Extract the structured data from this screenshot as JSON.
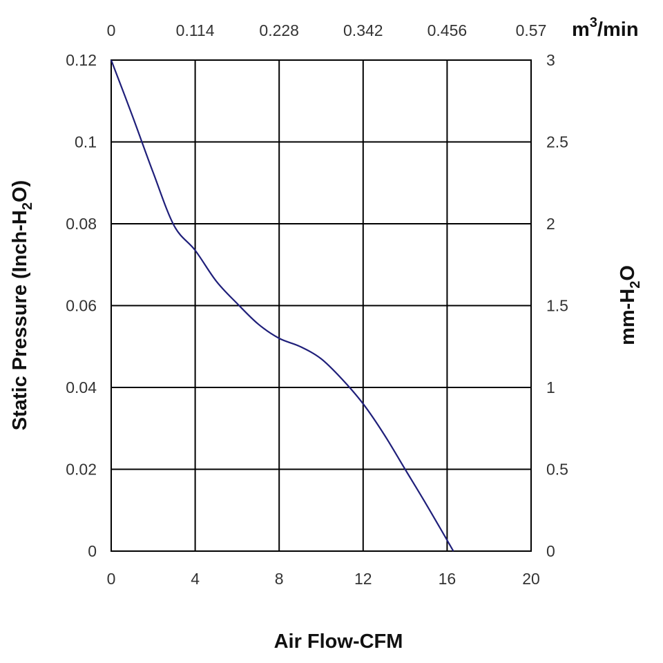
{
  "chart_data": {
    "type": "line",
    "xlabel": "Air Flow-CFM",
    "xlim": [
      0,
      20
    ],
    "x_ticks": [
      "0",
      "4",
      "8",
      "12",
      "16",
      "20"
    ],
    "ylabel": {
      "pre": "Static Pressure (Inch-H",
      "sub": "2",
      "post": "O)"
    },
    "ylim": [
      0,
      0.12
    ],
    "y_ticks": [
      "0",
      "0.02",
      "0.04",
      "0.06",
      "0.08",
      "0.1",
      "0.12"
    ],
    "x2_label": {
      "pre": "m",
      "sup": "3",
      "post": "/min"
    },
    "x2_ticks": [
      "0",
      "0.114",
      "0.228",
      "0.342",
      "0.456",
      "0.57"
    ],
    "y2_label": {
      "pre": "mm-H",
      "sub": "2",
      "post": "O"
    },
    "y2_ticks": [
      "0",
      "0.5",
      "1",
      "1.5",
      "2",
      "2.5",
      "3"
    ],
    "grid": true,
    "series": [
      {
        "name": "Static Pressure",
        "color": "#1f1f7a",
        "x": [
          0,
          1,
          2,
          3,
          4,
          5,
          6,
          7,
          8,
          9,
          10,
          11,
          12,
          13,
          14,
          15,
          16.3
        ],
        "y": [
          0.12,
          0.1065,
          0.0925,
          0.0795,
          0.0735,
          0.066,
          0.0605,
          0.0555,
          0.052,
          0.05,
          0.047,
          0.042,
          0.036,
          0.0285,
          0.02,
          0.0115,
          0
        ]
      }
    ]
  }
}
